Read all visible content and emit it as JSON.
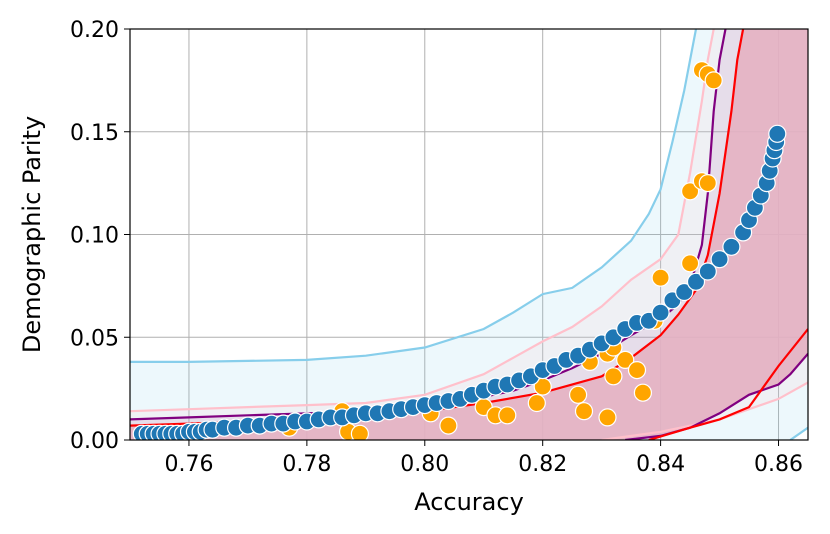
{
  "chart_data": {
    "type": "scatter",
    "title": "",
    "xlabel": "Accuracy",
    "ylabel": "Demographic Parity",
    "xlim": [
      0.75,
      0.865
    ],
    "ylim": [
      0.0,
      0.2
    ],
    "x_ticks": [
      "0.76",
      "0.78",
      "0.80",
      "0.82",
      "0.84",
      "0.86"
    ],
    "y_ticks": [
      "0.00",
      "0.05",
      "0.10",
      "0.15",
      "0.20"
    ],
    "grid": true,
    "legend": "none",
    "colors": {
      "blue_points": "#1f77b4",
      "orange_points": "#ffa500",
      "light_blue_band": "#87ceeb",
      "pink_band": "#ffc0cb",
      "purple_band": "#800080",
      "red_band": "#ff0000",
      "pink_fill": "#e4b1c2"
    },
    "series": [
      {
        "kind": "points",
        "color": "#1f77b4",
        "x": [
          0.752,
          0.753,
          0.754,
          0.755,
          0.756,
          0.757,
          0.758,
          0.759,
          0.76,
          0.761,
          0.762,
          0.763,
          0.764,
          0.766,
          0.768,
          0.77,
          0.772,
          0.774,
          0.776,
          0.778,
          0.78,
          0.782,
          0.784,
          0.786,
          0.788,
          0.79,
          0.792,
          0.794,
          0.796,
          0.798,
          0.8,
          0.802,
          0.804,
          0.806,
          0.808,
          0.81,
          0.812,
          0.814,
          0.816,
          0.818,
          0.82,
          0.822,
          0.824,
          0.826,
          0.828,
          0.83,
          0.832,
          0.834,
          0.836,
          0.838,
          0.84,
          0.842,
          0.844,
          0.846,
          0.848,
          0.85,
          0.852,
          0.854,
          0.855,
          0.856,
          0.857,
          0.858,
          0.8585,
          0.859,
          0.8593,
          0.8596,
          0.8598
        ],
        "y": [
          0.003,
          0.003,
          0.003,
          0.003,
          0.003,
          0.003,
          0.003,
          0.003,
          0.004,
          0.004,
          0.004,
          0.005,
          0.005,
          0.006,
          0.006,
          0.007,
          0.007,
          0.008,
          0.008,
          0.009,
          0.009,
          0.01,
          0.011,
          0.011,
          0.012,
          0.013,
          0.013,
          0.014,
          0.015,
          0.016,
          0.017,
          0.018,
          0.019,
          0.02,
          0.022,
          0.024,
          0.026,
          0.027,
          0.029,
          0.031,
          0.034,
          0.036,
          0.039,
          0.041,
          0.044,
          0.047,
          0.05,
          0.054,
          0.057,
          0.058,
          0.062,
          0.068,
          0.072,
          0.077,
          0.082,
          0.088,
          0.094,
          0.101,
          0.107,
          0.113,
          0.119,
          0.125,
          0.131,
          0.137,
          0.141,
          0.145,
          0.149
        ]
      },
      {
        "kind": "points",
        "color": "#ffa500",
        "x": [
          0.777,
          0.786,
          0.787,
          0.789,
          0.801,
          0.804,
          0.81,
          0.812,
          0.814,
          0.819,
          0.82,
          0.826,
          0.827,
          0.828,
          0.831,
          0.831,
          0.832,
          0.832,
          0.834,
          0.836,
          0.837,
          0.839,
          0.84,
          0.845,
          0.845,
          0.847,
          0.847,
          0.848,
          0.848,
          0.849
        ],
        "y": [
          0.006,
          0.014,
          0.004,
          0.003,
          0.013,
          0.007,
          0.016,
          0.012,
          0.012,
          0.018,
          0.026,
          0.022,
          0.014,
          0.038,
          0.011,
          0.042,
          0.031,
          0.045,
          0.039,
          0.034,
          0.023,
          0.058,
          0.079,
          0.086,
          0.121,
          0.126,
          0.18,
          0.178,
          0.125,
          0.175
        ]
      }
    ],
    "bands": [
      {
        "kind": "band",
        "color": "#87ceeb",
        "fill_opacity": 0.15,
        "upper": [
          [
            0.75,
            0.038
          ],
          [
            0.76,
            0.038
          ],
          [
            0.77,
            0.0385
          ],
          [
            0.78,
            0.039
          ],
          [
            0.79,
            0.041
          ],
          [
            0.8,
            0.045
          ],
          [
            0.81,
            0.054
          ],
          [
            0.815,
            0.062
          ],
          [
            0.82,
            0.071
          ],
          [
            0.825,
            0.074
          ],
          [
            0.83,
            0.084
          ],
          [
            0.835,
            0.097
          ],
          [
            0.838,
            0.11
          ],
          [
            0.84,
            0.122
          ],
          [
            0.842,
            0.145
          ],
          [
            0.844,
            0.17
          ],
          [
            0.845,
            0.185
          ],
          [
            0.846,
            0.2
          ]
        ],
        "lower": [
          [
            0.862,
            0.0
          ],
          [
            0.865,
            0.006
          ]
        ]
      },
      {
        "kind": "band",
        "color": "#ffc0cb",
        "fill_opacity": 0.15,
        "upper": [
          [
            0.75,
            0.014
          ],
          [
            0.76,
            0.015
          ],
          [
            0.77,
            0.016
          ],
          [
            0.78,
            0.017
          ],
          [
            0.79,
            0.018
          ],
          [
            0.8,
            0.022
          ],
          [
            0.81,
            0.032
          ],
          [
            0.815,
            0.04
          ],
          [
            0.82,
            0.048
          ],
          [
            0.825,
            0.055
          ],
          [
            0.83,
            0.065
          ],
          [
            0.835,
            0.078
          ],
          [
            0.84,
            0.088
          ],
          [
            0.843,
            0.1
          ],
          [
            0.845,
            0.13
          ],
          [
            0.847,
            0.165
          ],
          [
            0.848,
            0.185
          ],
          [
            0.849,
            0.2
          ]
        ],
        "lower": [
          [
            0.83,
            0.0
          ],
          [
            0.84,
            0.004
          ],
          [
            0.85,
            0.01
          ],
          [
            0.855,
            0.015
          ],
          [
            0.86,
            0.02
          ],
          [
            0.865,
            0.028
          ]
        ]
      },
      {
        "kind": "band",
        "color": "#800080",
        "fill_opacity": 0.08,
        "upper": [
          [
            0.75,
            0.01
          ],
          [
            0.76,
            0.011
          ],
          [
            0.77,
            0.012
          ],
          [
            0.78,
            0.013
          ],
          [
            0.79,
            0.014
          ],
          [
            0.8,
            0.016
          ],
          [
            0.81,
            0.021
          ],
          [
            0.815,
            0.024
          ],
          [
            0.82,
            0.029
          ],
          [
            0.825,
            0.035
          ],
          [
            0.83,
            0.042
          ],
          [
            0.835,
            0.051
          ],
          [
            0.84,
            0.059
          ],
          [
            0.843,
            0.066
          ],
          [
            0.845,
            0.075
          ],
          [
            0.847,
            0.095
          ],
          [
            0.848,
            0.12
          ],
          [
            0.849,
            0.16
          ],
          [
            0.85,
            0.185
          ],
          [
            0.851,
            0.2
          ]
        ],
        "lower": [
          [
            0.834,
            0.0
          ],
          [
            0.84,
            0.002
          ],
          [
            0.845,
            0.006
          ],
          [
            0.85,
            0.013
          ],
          [
            0.855,
            0.022
          ],
          [
            0.86,
            0.027
          ],
          [
            0.862,
            0.032
          ],
          [
            0.865,
            0.042
          ]
        ]
      },
      {
        "kind": "band",
        "color": "#ff0000",
        "fill_opacity": 0.0,
        "upper": [
          [
            0.75,
            0.007
          ],
          [
            0.76,
            0.008
          ],
          [
            0.77,
            0.009
          ],
          [
            0.78,
            0.01
          ],
          [
            0.79,
            0.012
          ],
          [
            0.8,
            0.014
          ],
          [
            0.81,
            0.018
          ],
          [
            0.82,
            0.023
          ],
          [
            0.83,
            0.031
          ],
          [
            0.835,
            0.04
          ],
          [
            0.84,
            0.051
          ],
          [
            0.843,
            0.061
          ],
          [
            0.846,
            0.073
          ],
          [
            0.848,
            0.09
          ],
          [
            0.85,
            0.12
          ],
          [
            0.852,
            0.16
          ],
          [
            0.853,
            0.185
          ],
          [
            0.854,
            0.2
          ]
        ],
        "lower": [
          [
            0.838,
            0.0
          ],
          [
            0.845,
            0.006
          ],
          [
            0.85,
            0.01
          ],
          [
            0.855,
            0.016
          ],
          [
            0.86,
            0.036
          ],
          [
            0.865,
            0.054
          ]
        ]
      }
    ]
  }
}
